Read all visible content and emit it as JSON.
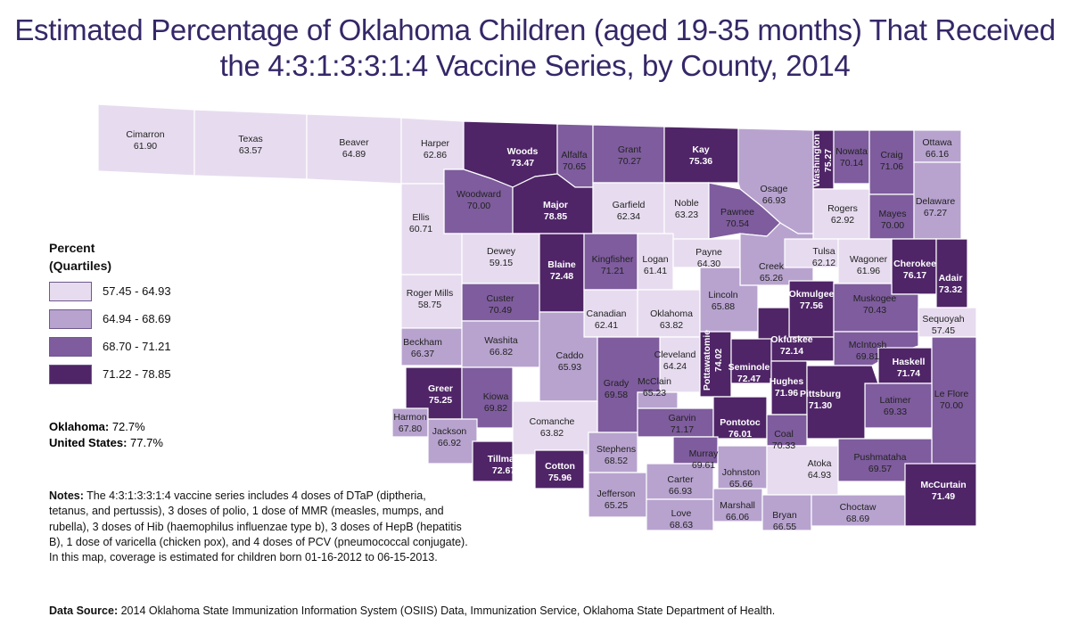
{
  "title": {
    "line1": "Estimated Percentage of Oklahoma Children (aged 19-35 months) That Received",
    "line2": "the 4:3:1:3:3:1:4 Vaccine Series, by County, 2014"
  },
  "colors": {
    "q1": "#e7dcef",
    "q2": "#b8a3cf",
    "q3": "#7e5c9d",
    "q4": "#4f2567",
    "border": "#ffffff"
  },
  "legend": {
    "title_line1": "Percent",
    "title_line2": "(Quartiles)",
    "items": [
      {
        "label": "57.45 - 64.93",
        "color": "#e7dcef"
      },
      {
        "label": "64.94 - 68.69",
        "color": "#b8a3cf"
      },
      {
        "label": "68.70 - 71.21",
        "color": "#7e5c9d"
      },
      {
        "label": "71.22 - 78.85",
        "color": "#4f2567"
      }
    ]
  },
  "summary": {
    "oklahoma_label": "Oklahoma:",
    "oklahoma_value": "72.7%",
    "us_label": "United States:",
    "us_value": "77.7%"
  },
  "notes": {
    "label": "Notes:",
    "text": "The 4:3:1:3:3:1:4 vaccine series includes 4 doses of DTaP (diptheria, tetanus, and pertussis), 3 doses of polio, 1 dose of MMR (measles, mumps, and rubella), 3 doses of Hib (haemophilus influenzae type b), 3 doses of HepB (hepatitis B), 1 dose of varicella (chicken pox), and 4 doses of PCV (pneumococcal conjugate). In this map, coverage is estimated for children born 01-16-2012 to 06-15-2013."
  },
  "source": {
    "label": "Data Source:",
    "text": "2014 Oklahoma State Immunization Information System (OSIIS) Data, Immunization Service, Oklahoma State Department of Health."
  },
  "counties": [
    {
      "name": "Cimarron",
      "value": "61.90",
      "q": 1
    },
    {
      "name": "Texas",
      "value": "63.57",
      "q": 1
    },
    {
      "name": "Beaver",
      "value": "64.89",
      "q": 1
    },
    {
      "name": "Harper",
      "value": "62.86",
      "q": 1
    },
    {
      "name": "Woods",
      "value": "73.47",
      "q": 4
    },
    {
      "name": "Alfalfa",
      "value": "70.65",
      "q": 3
    },
    {
      "name": "Grant",
      "value": "70.27",
      "q": 3
    },
    {
      "name": "Kay",
      "value": "75.36",
      "q": 4
    },
    {
      "name": "Washington",
      "value": "75.27",
      "q": 4
    },
    {
      "name": "Nowata",
      "value": "70.14",
      "q": 3
    },
    {
      "name": "Craig",
      "value": "71.06",
      "q": 3
    },
    {
      "name": "Ottawa",
      "value": "66.16",
      "q": 2
    },
    {
      "name": "Osage",
      "value": "66.93",
      "q": 2
    },
    {
      "name": "Woodward",
      "value": "70.00",
      "q": 3
    },
    {
      "name": "Major",
      "value": "78.85",
      "q": 4
    },
    {
      "name": "Garfield",
      "value": "62.34",
      "q": 1
    },
    {
      "name": "Noble",
      "value": "63.23",
      "q": 1
    },
    {
      "name": "Pawnee",
      "value": "70.54",
      "q": 3
    },
    {
      "name": "Rogers",
      "value": "62.92",
      "q": 1
    },
    {
      "name": "Mayes",
      "value": "70.00",
      "q": 3
    },
    {
      "name": "Delaware",
      "value": "67.27",
      "q": 2
    },
    {
      "name": "Ellis",
      "value": "60.71",
      "q": 1
    },
    {
      "name": "Dewey",
      "value": "59.15",
      "q": 1
    },
    {
      "name": "Blaine",
      "value": "72.48",
      "q": 4
    },
    {
      "name": "Kingfisher",
      "value": "71.21",
      "q": 3
    },
    {
      "name": "Logan",
      "value": "61.41",
      "q": 1
    },
    {
      "name": "Payne",
      "value": "64.30",
      "q": 1
    },
    {
      "name": "Creek",
      "value": "65.26",
      "q": 2
    },
    {
      "name": "Tulsa",
      "value": "62.12",
      "q": 1
    },
    {
      "name": "Wagoner",
      "value": "61.96",
      "q": 1
    },
    {
      "name": "Cherokee",
      "value": "76.17",
      "q": 4
    },
    {
      "name": "Adair",
      "value": "73.32",
      "q": 4
    },
    {
      "name": "Roger Mills",
      "value": "58.75",
      "q": 1
    },
    {
      "name": "Custer",
      "value": "70.49",
      "q": 3
    },
    {
      "name": "Canadian",
      "value": "62.41",
      "q": 1
    },
    {
      "name": "Oklahoma",
      "value": "63.82",
      "q": 1
    },
    {
      "name": "Lincoln",
      "value": "65.88",
      "q": 2
    },
    {
      "name": "Okmulgee",
      "value": "77.56",
      "q": 4
    },
    {
      "name": "Muskogee",
      "value": "70.43",
      "q": 3
    },
    {
      "name": "Sequoyah",
      "value": "57.45",
      "q": 1
    },
    {
      "name": "Okfuskee",
      "value": "72.14",
      "q": 4
    },
    {
      "name": "McIntosh",
      "value": "69.81",
      "q": 3
    },
    {
      "name": "Beckham",
      "value": "66.37",
      "q": 2
    },
    {
      "name": "Washita",
      "value": "66.82",
      "q": 2
    },
    {
      "name": "Caddo",
      "value": "65.93",
      "q": 2
    },
    {
      "name": "Cleveland",
      "value": "64.24",
      "q": 1
    },
    {
      "name": "Pottawatomie",
      "value": "74.02",
      "q": 4
    },
    {
      "name": "Seminole",
      "value": "72.47",
      "q": 4
    },
    {
      "name": "Hughes",
      "value": "71.96",
      "q": 4
    },
    {
      "name": "Haskell",
      "value": "71.74",
      "q": 4
    },
    {
      "name": "Le Flore",
      "value": "70.00",
      "q": 3
    },
    {
      "name": "Latimer",
      "value": "69.33",
      "q": 3
    },
    {
      "name": "Pittsburg",
      "value": "71.30",
      "q": 4
    },
    {
      "name": "Greer",
      "value": "75.25",
      "q": 4
    },
    {
      "name": "Kiowa",
      "value": "69.82",
      "q": 3
    },
    {
      "name": "Grady",
      "value": "69.58",
      "q": 3
    },
    {
      "name": "McClain",
      "value": "65.23",
      "q": 2
    },
    {
      "name": "Garvin",
      "value": "71.17",
      "q": 3
    },
    {
      "name": "Pontotoc",
      "value": "76.01",
      "q": 4
    },
    {
      "name": "Coal",
      "value": "70.33",
      "q": 3
    },
    {
      "name": "Harmon",
      "value": "67.80",
      "q": 2
    },
    {
      "name": "Jackson",
      "value": "66.92",
      "q": 2
    },
    {
      "name": "Comanche",
      "value": "63.82",
      "q": 1
    },
    {
      "name": "Tillman",
      "value": "72.67",
      "q": 4
    },
    {
      "name": "Cotton",
      "value": "75.96",
      "q": 4
    },
    {
      "name": "Stephens",
      "value": "68.52",
      "q": 2
    },
    {
      "name": "Murray",
      "value": "69.61",
      "q": 3
    },
    {
      "name": "Johnston",
      "value": "65.66",
      "q": 2
    },
    {
      "name": "Atoka",
      "value": "64.93",
      "q": 1
    },
    {
      "name": "Pushmataha",
      "value": "69.57",
      "q": 3
    },
    {
      "name": "Jefferson",
      "value": "65.25",
      "q": 2
    },
    {
      "name": "Carter",
      "value": "66.93",
      "q": 2
    },
    {
      "name": "Love",
      "value": "68.63",
      "q": 2
    },
    {
      "name": "Marshall",
      "value": "66.06",
      "q": 2
    },
    {
      "name": "Bryan",
      "value": "66.55",
      "q": 2
    },
    {
      "name": "Choctaw",
      "value": "68.69",
      "q": 2
    },
    {
      "name": "McCurtain",
      "value": "71.49",
      "q": 4
    }
  ]
}
